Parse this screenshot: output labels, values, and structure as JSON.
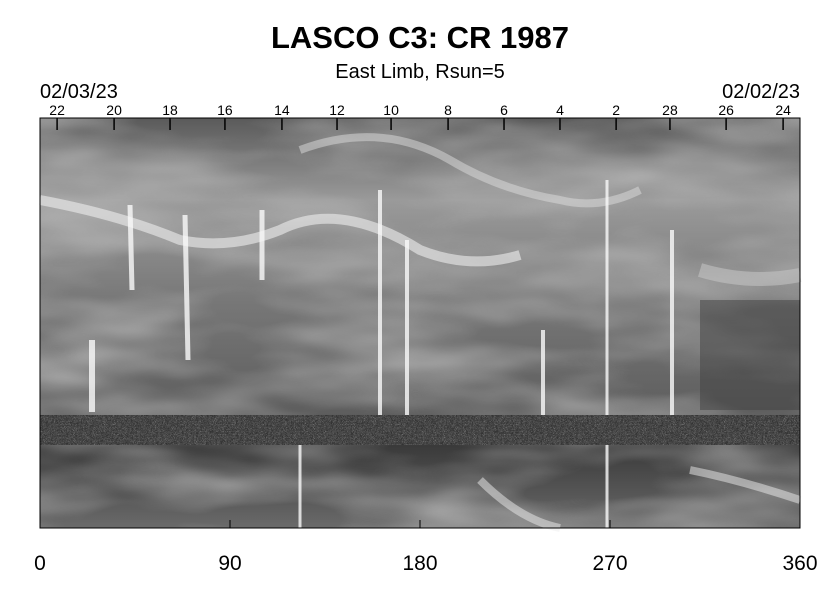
{
  "chart_data": {
    "type": "synoptic-map",
    "title": "LASCO C3: CR 1987",
    "subtitle": "East Limb, Rsun=5",
    "start_date": "02/03/23",
    "end_date": "02/02/23",
    "xlim": [
      0,
      360
    ],
    "xticks": [
      0,
      90,
      180,
      270,
      360
    ],
    "top_ticks": [
      {
        "value": 8.1,
        "label": "22"
      },
      {
        "value": 35.1,
        "label": "20"
      },
      {
        "value": 61.6,
        "label": "18"
      },
      {
        "value": 87.6,
        "label": "16"
      },
      {
        "value": 114.6,
        "label": "14"
      },
      {
        "value": 140.7,
        "label": "12"
      },
      {
        "value": 166.3,
        "label": "10"
      },
      {
        "value": 193.3,
        "label": "8"
      },
      {
        "value": 219.8,
        "label": "6"
      },
      {
        "value": 246.3,
        "label": "4"
      },
      {
        "value": 272.9,
        "label": "2"
      },
      {
        "value": 298.4,
        "label": "28"
      },
      {
        "value": 325,
        "label": "26"
      },
      {
        "value": 352,
        "label": "24"
      }
    ]
  }
}
